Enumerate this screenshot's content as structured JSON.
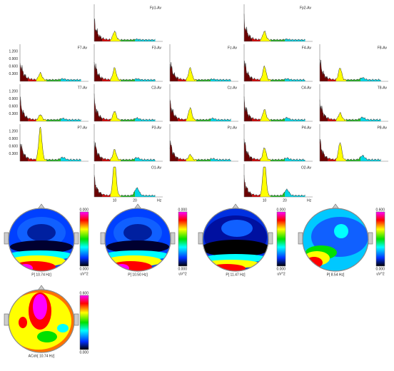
{
  "channels": [
    "Fp1-Av",
    "Fp2-Av",
    "F7-Av",
    "F3-Av",
    "Fz-Av",
    "F4-Av",
    "F8-Av",
    "T7-Av",
    "C3-Av",
    "Cz-Av",
    "C4-Av",
    "T8-Av",
    "P7-Av",
    "P3-Av",
    "Pz-Av",
    "P4-Av",
    "P8-Av",
    "O1-Av",
    "O2-Av"
  ],
  "y_axis_ticks": [
    "1.200",
    "0.900",
    "0.600",
    "0.300"
  ],
  "x_axis_ticks": [
    "10",
    "20",
    "Hz"
  ],
  "topomaps": [
    {
      "label": "P[ 10.74 Hz]",
      "scale_max": "0.000",
      "scale_min": "0.000",
      "unit": "uV^2"
    },
    {
      "label": "P[ 10.50 Hz]",
      "scale_max": "0.000",
      "scale_min": "0.000",
      "unit": "uV^2"
    },
    {
      "label": "P[ 11.47 Hz]",
      "scale_max": "0.000",
      "scale_min": "0.000",
      "unit": "uV^2"
    },
    {
      "label": "P[  8.54 Hz]",
      "scale_max": "0.600",
      "scale_min": "0.000",
      "unit": "uV^2"
    },
    {
      "label": "ACoh[ 10.74 Hz]",
      "scale_max": "0.600",
      "scale_min": "0.000"
    }
  ]
}
